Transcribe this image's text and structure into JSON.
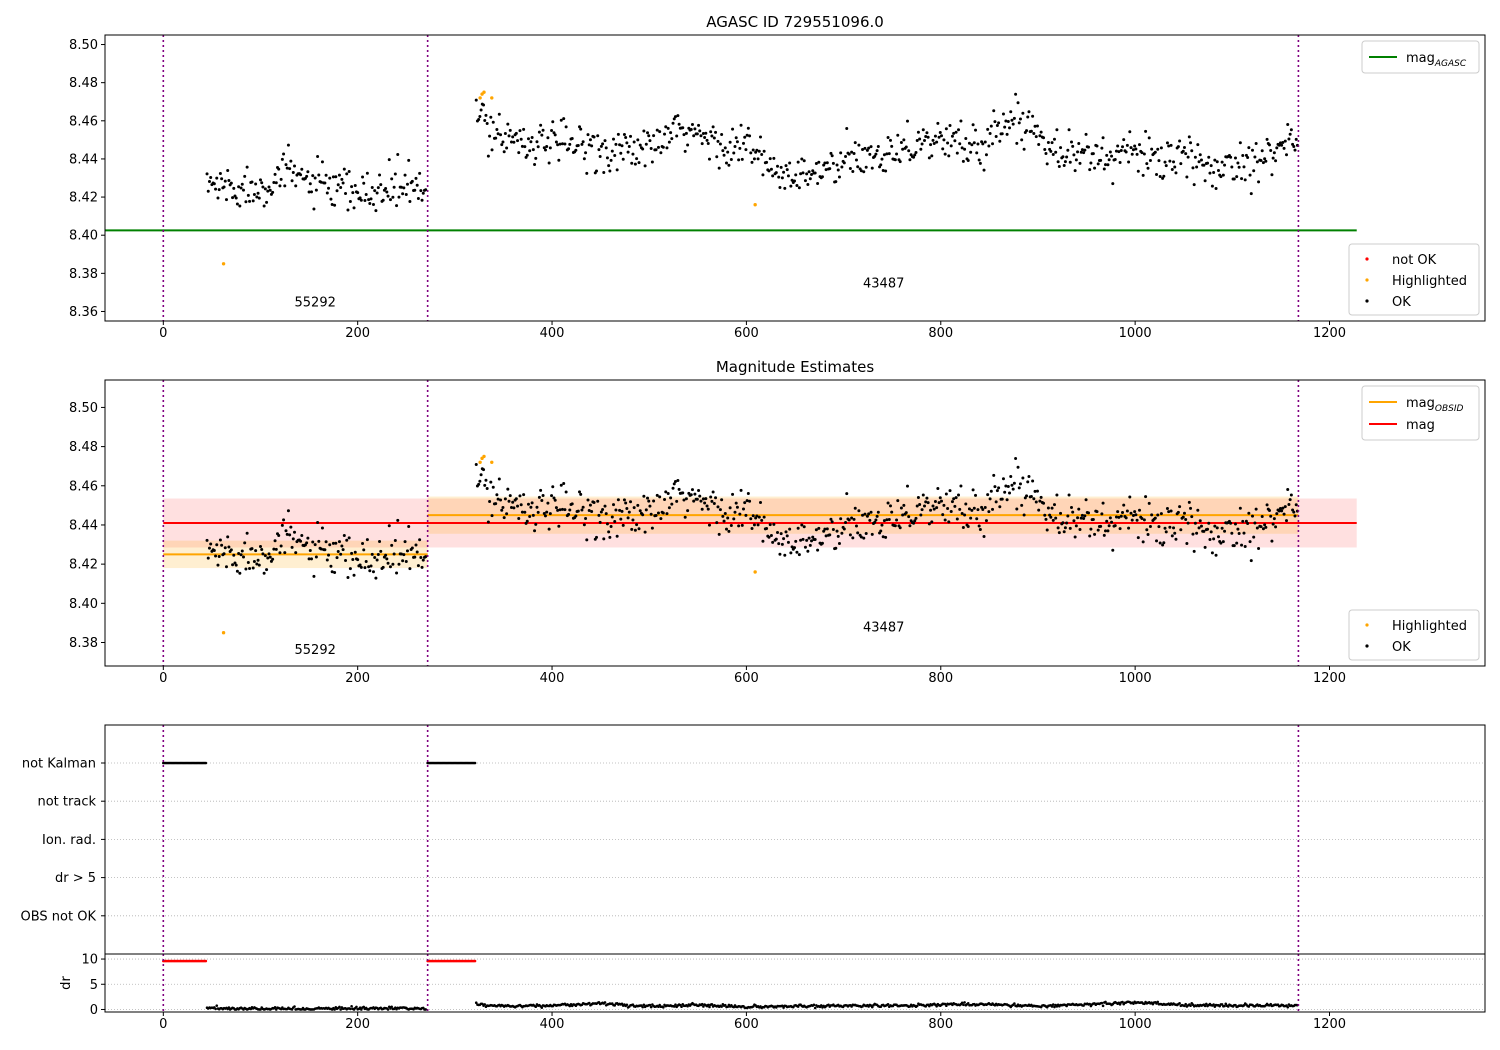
{
  "figure_title": "AGASC ID 729551096.0",
  "chart_data": [
    {
      "id": "panel1",
      "type": "scatter",
      "title": "AGASC ID 729551096.0",
      "xlim": [
        -60,
        1360
      ],
      "ylim": [
        8.355,
        8.505
      ],
      "xticks": [
        0,
        200,
        400,
        600,
        800,
        1000,
        1200
      ],
      "yticks": [
        8.36,
        8.38,
        8.4,
        8.42,
        8.44,
        8.46,
        8.48,
        8.5
      ],
      "grid": false,
      "obsid_boundaries": [
        0,
        272,
        1168
      ],
      "obsid_labels": [
        {
          "text": "55292",
          "x": 135,
          "y": 8.3625
        },
        {
          "text": "43487",
          "x": 720,
          "y": 8.3725
        }
      ],
      "hlines": [
        {
          "name": "mag",
          "sub": "AGASC",
          "y": 8.4025,
          "x_range": [
            -60,
            1228
          ],
          "color": "#008000"
        }
      ],
      "legend_lines": {
        "placement": "top-right",
        "entries": [
          {
            "name": "mag",
            "sub": "AGASC",
            "color": "#008000"
          }
        ]
      },
      "legend_points": {
        "placement": "bottom-right",
        "entries": [
          {
            "name": "not OK",
            "color": "#ff0000"
          },
          {
            "name": "Highlighted",
            "color": "#ffa500"
          },
          {
            "name": "OK",
            "color": "#000000"
          }
        ]
      },
      "highlighted_points": [
        [
          62,
          8.385
        ],
        [
          326,
          8.472
        ],
        [
          328,
          8.474
        ],
        [
          330,
          8.475
        ],
        [
          338,
          8.472
        ],
        [
          609,
          8.416
        ]
      ],
      "series_trend": [
        [
          45,
          8.427
        ],
        [
          90,
          8.424
        ],
        [
          130,
          8.433
        ],
        [
          170,
          8.424
        ],
        [
          210,
          8.421
        ],
        [
          245,
          8.426
        ],
        [
          270,
          8.423
        ],
        [
          322,
          8.462
        ],
        [
          345,
          8.454
        ],
        [
          375,
          8.449
        ],
        [
          400,
          8.447
        ],
        [
          430,
          8.448
        ],
        [
          460,
          8.444
        ],
        [
          500,
          8.445
        ],
        [
          535,
          8.455
        ],
        [
          570,
          8.448
        ],
        [
          600,
          8.447
        ],
        [
          630,
          8.432
        ],
        [
          660,
          8.43
        ],
        [
          690,
          8.436
        ],
        [
          720,
          8.44
        ],
        [
          760,
          8.447
        ],
        [
          800,
          8.45
        ],
        [
          840,
          8.446
        ],
        [
          870,
          8.461
        ],
        [
          900,
          8.456
        ],
        [
          920,
          8.445
        ],
        [
          960,
          8.441
        ],
        [
          1000,
          8.443
        ],
        [
          1040,
          8.44
        ],
        [
          1080,
          8.435
        ],
        [
          1120,
          8.44
        ],
        [
          1140,
          8.445
        ],
        [
          1168,
          8.45
        ]
      ],
      "series_segments": [
        [
          45,
          270
        ],
        [
          322,
          1168
        ]
      ],
      "series_noise": 0.0055
    },
    {
      "id": "panel2",
      "type": "scatter",
      "title": "Magnitude Estimates",
      "xlim": [
        -60,
        1360
      ],
      "ylim": [
        8.368,
        8.514
      ],
      "xticks": [
        0,
        200,
        400,
        600,
        800,
        1000,
        1200
      ],
      "yticks": [
        8.38,
        8.4,
        8.42,
        8.44,
        8.46,
        8.48,
        8.5
      ],
      "grid": false,
      "obsid_boundaries": [
        0,
        272,
        1168
      ],
      "obsid_labels": [
        {
          "text": "55292",
          "x": 135,
          "y": 8.374
        },
        {
          "text": "43487",
          "x": 720,
          "y": 8.3855
        }
      ],
      "bands": [
        {
          "x_range": [
            0,
            1228
          ],
          "y_range": [
            8.4285,
            8.4535
          ],
          "color": "#ff0000",
          "alpha": 0.12
        },
        {
          "x_range": [
            0,
            272
          ],
          "y_range": [
            8.418,
            8.432
          ],
          "color": "#ffa500",
          "alpha": 0.18
        },
        {
          "x_range": [
            272,
            1168
          ],
          "y_range": [
            8.4355,
            8.4545
          ],
          "color": "#ffa500",
          "alpha": 0.18
        }
      ],
      "hlines": [
        {
          "name": "mag",
          "sub": "",
          "y": 8.441,
          "x_range": [
            0,
            1228
          ],
          "color": "#ff0000"
        },
        {
          "name": "mag",
          "sub": "OBSID",
          "y": 8.425,
          "x_range": [
            0,
            272
          ],
          "color": "#ffa500"
        },
        {
          "name": "mag",
          "sub": "OBSID",
          "y": 8.445,
          "x_range": [
            272,
            1168
          ],
          "color": "#ffa500"
        }
      ],
      "legend_lines": {
        "placement": "top-right",
        "entries": [
          {
            "name": "mag",
            "sub": "OBSID",
            "color": "#ffa500"
          },
          {
            "name": "mag",
            "sub": "",
            "color": "#ff0000"
          }
        ]
      },
      "legend_points": {
        "placement": "bottom-right",
        "entries": [
          {
            "name": "Highlighted",
            "color": "#ffa500"
          },
          {
            "name": "OK",
            "color": "#000000"
          }
        ]
      },
      "highlighted_points": [
        [
          62,
          8.385
        ],
        [
          326,
          8.472
        ],
        [
          328,
          8.474
        ],
        [
          330,
          8.475
        ],
        [
          338,
          8.472
        ],
        [
          609,
          8.416
        ]
      ],
      "series_trend": [
        [
          45,
          8.427
        ],
        [
          90,
          8.424
        ],
        [
          130,
          8.433
        ],
        [
          170,
          8.424
        ],
        [
          210,
          8.421
        ],
        [
          245,
          8.426
        ],
        [
          270,
          8.423
        ],
        [
          322,
          8.462
        ],
        [
          345,
          8.454
        ],
        [
          375,
          8.449
        ],
        [
          400,
          8.447
        ],
        [
          430,
          8.448
        ],
        [
          460,
          8.444
        ],
        [
          500,
          8.445
        ],
        [
          535,
          8.455
        ],
        [
          570,
          8.448
        ],
        [
          600,
          8.447
        ],
        [
          630,
          8.432
        ],
        [
          660,
          8.43
        ],
        [
          690,
          8.436
        ],
        [
          720,
          8.44
        ],
        [
          760,
          8.447
        ],
        [
          800,
          8.45
        ],
        [
          840,
          8.446
        ],
        [
          870,
          8.461
        ],
        [
          900,
          8.456
        ],
        [
          920,
          8.445
        ],
        [
          960,
          8.441
        ],
        [
          1000,
          8.443
        ],
        [
          1040,
          8.44
        ],
        [
          1080,
          8.435
        ],
        [
          1120,
          8.44
        ],
        [
          1140,
          8.445
        ],
        [
          1168,
          8.45
        ]
      ],
      "series_segments": [
        [
          45,
          270
        ],
        [
          322,
          1168
        ]
      ],
      "series_noise": 0.0055
    },
    {
      "id": "panel3",
      "type": "scatter",
      "title": "",
      "xlim": [
        -60,
        1360
      ],
      "categories": [
        "not Kalman",
        "not track",
        "Ion. rad.",
        "dr > 5",
        "OBS not OK"
      ],
      "grid": true,
      "obsid_boundaries": [
        0,
        272,
        1168
      ],
      "flag_segments": [
        {
          "category": "not Kalman",
          "x_range": [
            0,
            44
          ],
          "color": "#000000"
        },
        {
          "category": "not Kalman",
          "x_range": [
            272,
            321
          ],
          "color": "#000000"
        }
      ]
    },
    {
      "id": "panel4",
      "type": "line",
      "title": "",
      "ylabel": "dr",
      "xlim": [
        -60,
        1360
      ],
      "ylim": [
        -0.5,
        11
      ],
      "xticks": [
        0,
        200,
        400,
        600,
        800,
        1000,
        1200
      ],
      "yticks": [
        0,
        5,
        10
      ],
      "grid": true,
      "obsid_boundaries": [
        0,
        272,
        1168
      ],
      "clipped_segments": [
        {
          "x_range": [
            0,
            44
          ],
          "y": 9.6,
          "color": "#ff0000"
        },
        {
          "x_range": [
            272,
            321
          ],
          "y": 9.6,
          "color": "#ff0000"
        }
      ],
      "dr_trend": [
        [
          45,
          0.25
        ],
        [
          100,
          0.15
        ],
        [
          150,
          0.1
        ],
        [
          200,
          0.2
        ],
        [
          270,
          0.15
        ],
        [
          322,
          0.9
        ],
        [
          360,
          0.7
        ],
        [
          400,
          0.8
        ],
        [
          450,
          1.2
        ],
        [
          500,
          0.6
        ],
        [
          550,
          0.9
        ],
        [
          600,
          0.5
        ],
        [
          650,
          0.6
        ],
        [
          700,
          0.8
        ],
        [
          750,
          0.7
        ],
        [
          800,
          1.0
        ],
        [
          850,
          1.0
        ],
        [
          900,
          0.7
        ],
        [
          950,
          1.0
        ],
        [
          1000,
          1.4
        ],
        [
          1050,
          0.9
        ],
        [
          1100,
          0.8
        ],
        [
          1168,
          0.8
        ]
      ],
      "dr_segments": [
        [
          45,
          270
        ],
        [
          322,
          1168
        ]
      ]
    }
  ]
}
